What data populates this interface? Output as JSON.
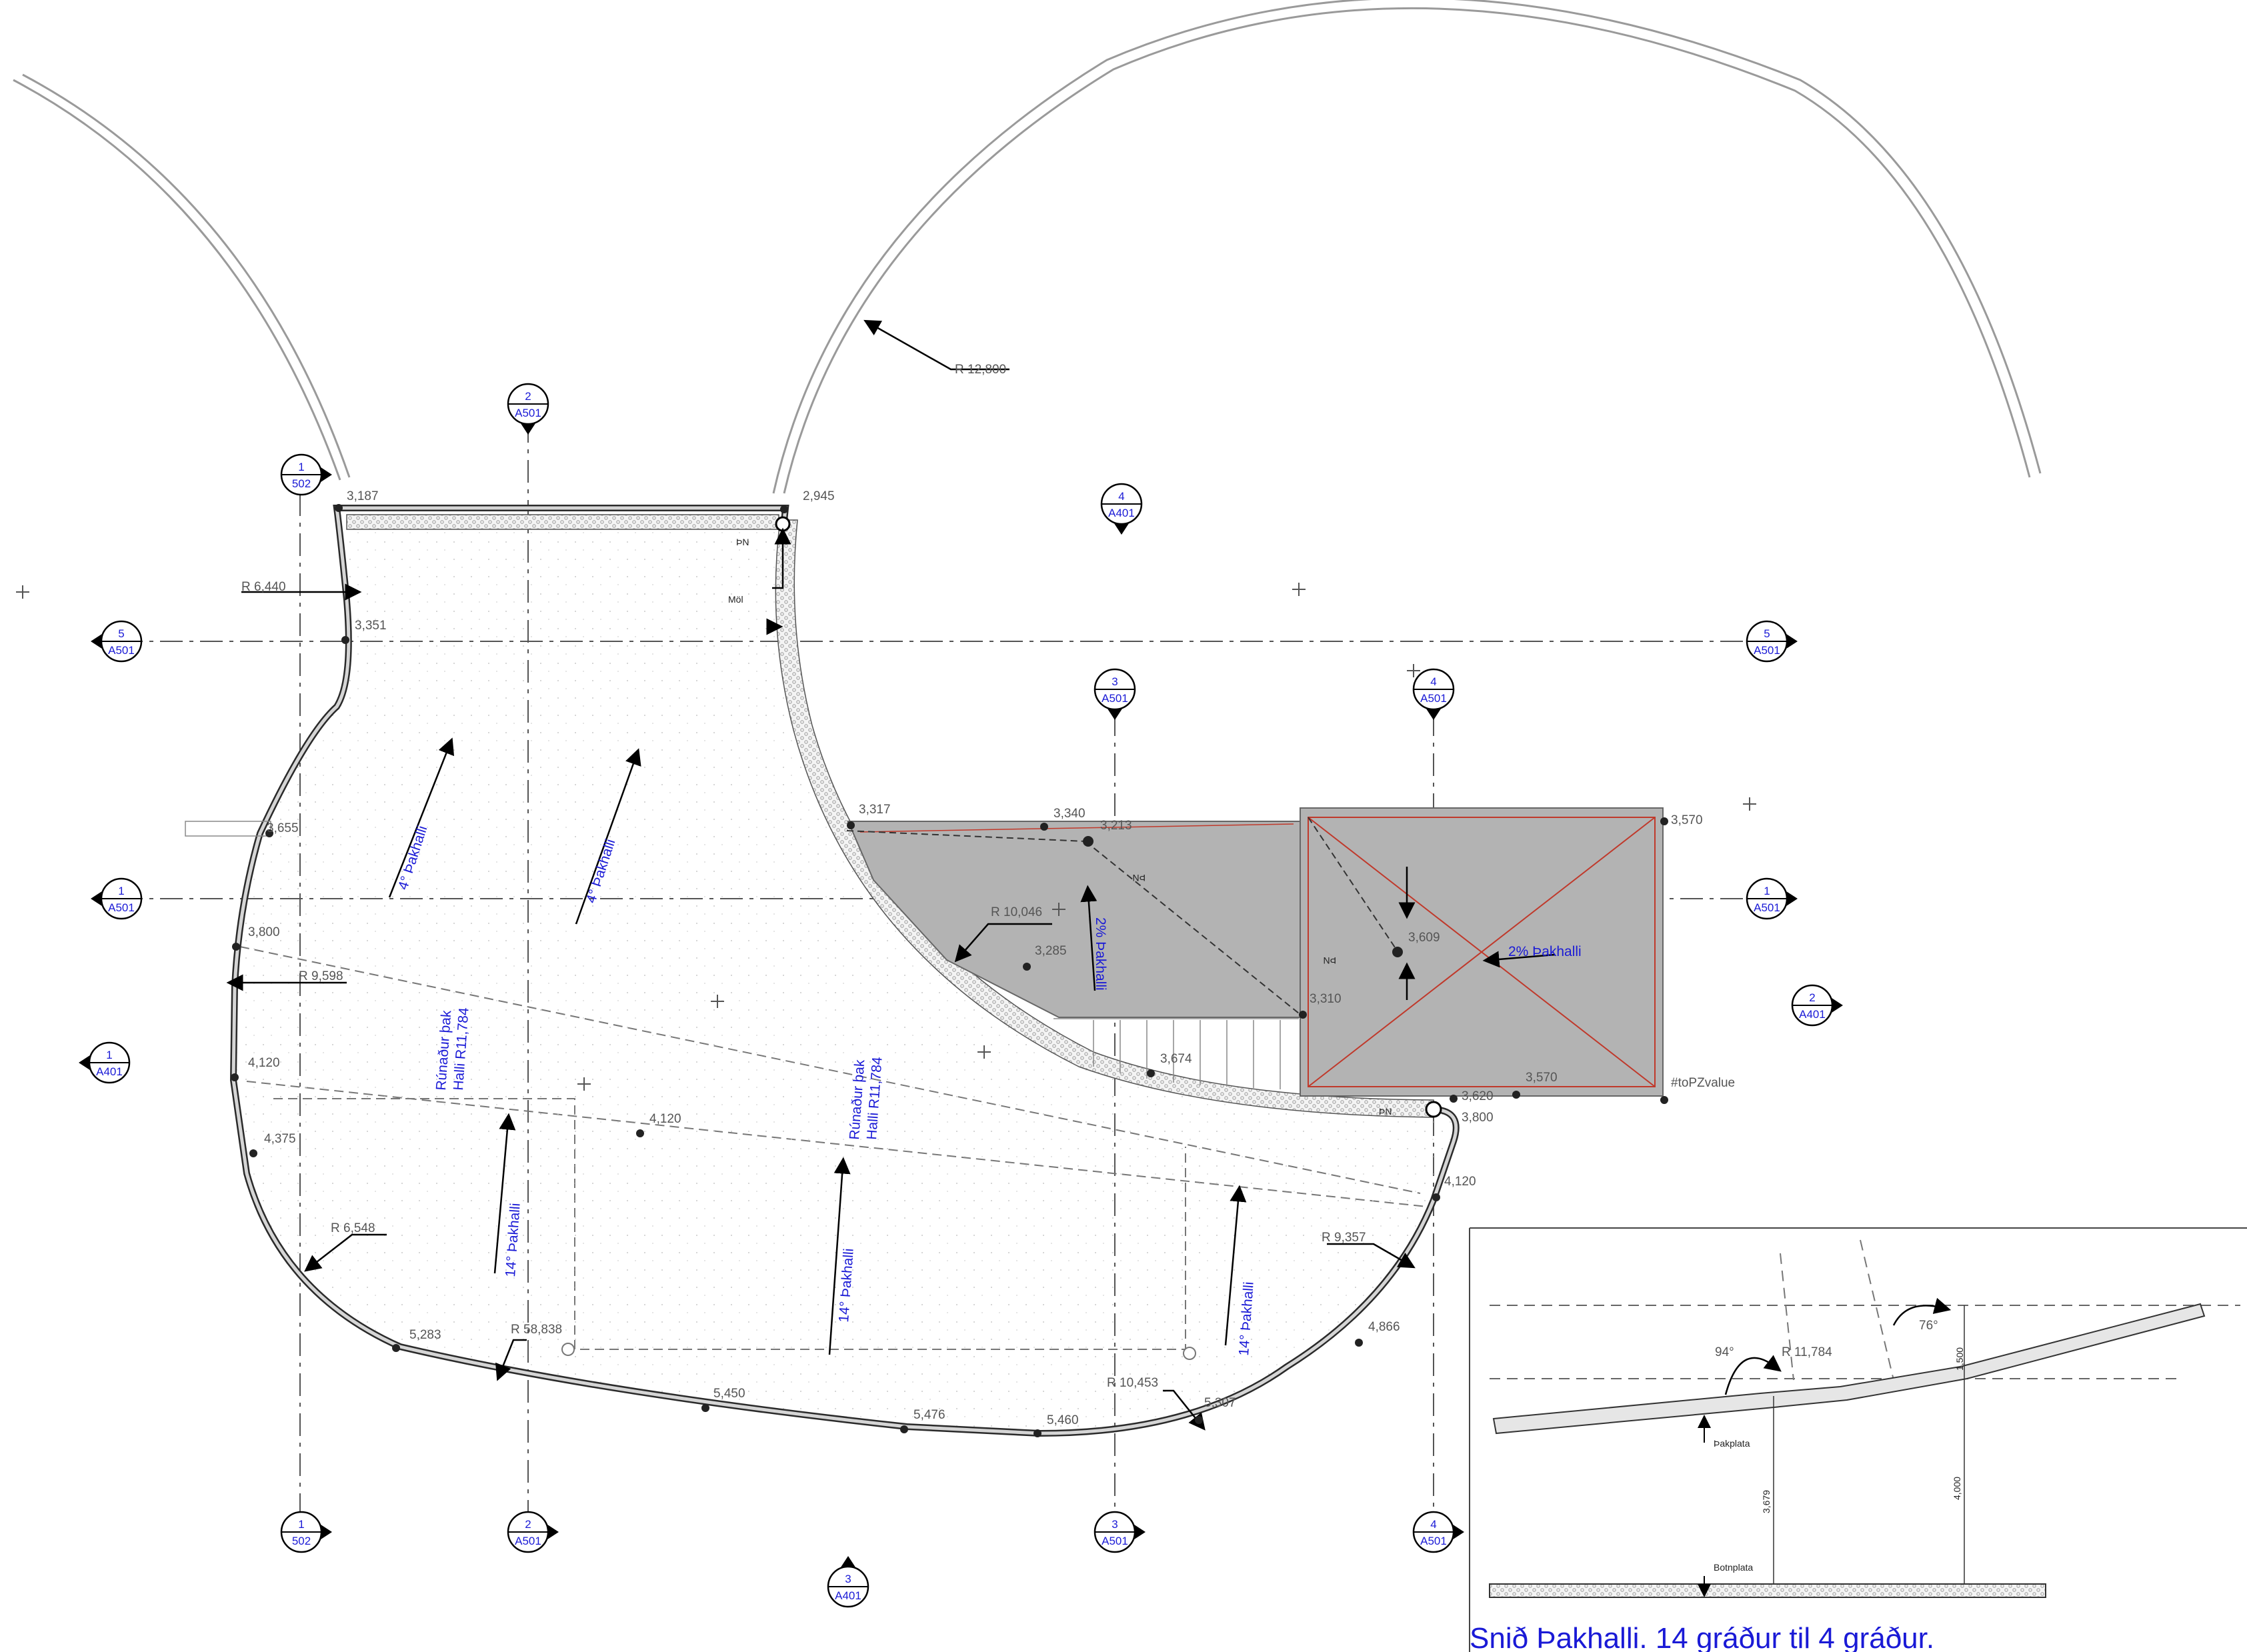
{
  "levels": {
    "l3187": "3,187",
    "l2945": "2,945",
    "l3351": "3,351",
    "l3655": "3,655",
    "l3800a": "3,800",
    "l4120a": "4,120",
    "l4375": "4,375",
    "l5283": "5,283",
    "l5450": "5,450",
    "l5476": "5,476",
    "l5460": "5,460",
    "l5307": "5,307",
    "l4866": "4,866",
    "l4120b": "4,120",
    "l3800b": "3,800",
    "l3620": "3,620",
    "l3570a": "3,570",
    "l3570b": "3,570",
    "l3317": "3,317",
    "l3340": "3,340",
    "l3213": "3,213",
    "l3285": "3,285",
    "l3674": "3,674",
    "l3609": "3,609",
    "l3310": "3,310",
    "l4120c": "4,120",
    "toPZ": "#toPZvalue"
  },
  "radii": {
    "r12800": "R 12,800",
    "r6440": "R 6,440",
    "r9598": "R 9,598",
    "r10046": "R 10,046",
    "r6548": "R 6,548",
    "r58838": "R 58,838",
    "r10453": "R 10,453",
    "r9357": "R 9,357"
  },
  "slopes": {
    "s1": "4° Þakhalli",
    "s2": "4° Þakhalli",
    "s3": "2% Þakhalli",
    "s4": "2% Þakhalli",
    "s5": "14° Þakhalli",
    "s6": "14° Þakhalli",
    "s7": "14° Þakhalli",
    "r1a": "Rúnaður þak",
    "r1b": "Halli R11,784",
    "r2a": "Rúnaður þak",
    "r2b": "Halli R11,784"
  },
  "notes": {
    "mol": "Möl",
    "pn": "ÞN"
  },
  "section_markers": [
    {
      "num": "1",
      "sheet": "502"
    },
    {
      "num": "2",
      "sheet": "A501"
    },
    {
      "num": "4",
      "sheet": "A401"
    },
    {
      "num": "5",
      "sheet": "A501"
    },
    {
      "num": "3",
      "sheet": "A501"
    },
    {
      "num": "4",
      "sheet": "A501"
    },
    {
      "num": "5",
      "sheet": "A501"
    },
    {
      "num": "1",
      "sheet": "A501"
    },
    {
      "num": "1",
      "sheet": "A501"
    },
    {
      "num": "2",
      "sheet": "A401"
    },
    {
      "num": "1",
      "sheet": "A401"
    },
    {
      "num": "1",
      "sheet": "502"
    },
    {
      "num": "2",
      "sheet": "A501"
    },
    {
      "num": "3",
      "sheet": "A501"
    },
    {
      "num": "4",
      "sheet": "A501"
    },
    {
      "num": "3",
      "sheet": "A401"
    }
  ],
  "section_detail": {
    "angle1": "94°",
    "angle2": "76°",
    "radius": "R 11,784",
    "dim1": "1,500",
    "dim2": "3,679",
    "dim3": "4,000",
    "slab_roof": "Þakplata",
    "slab_floor": "Botnplata",
    "caption": "Snið Þakhalli.  14 gráður til 4 gráður."
  },
  "colors": {
    "annotation": "#1a1ad6",
    "roof_fill": "#b3b3b3",
    "diagonal": "#c0392b"
  }
}
